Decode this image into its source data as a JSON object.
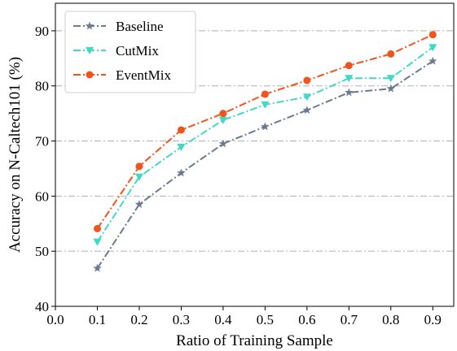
{
  "chart_data": {
    "type": "line",
    "xlabel": "Ratio of Training Sample",
    "ylabel": "Accuracy on N-Caltech101 (%)",
    "xlim": [
      0.0,
      0.95
    ],
    "ylim": [
      40,
      95
    ],
    "xticks": [
      "0.0",
      "0.1",
      "0.2",
      "0.3",
      "0.4",
      "0.5",
      "0.6",
      "0.7",
      "0.8",
      "0.9"
    ],
    "yticks": [
      "40",
      "50",
      "60",
      "70",
      "80",
      "90"
    ],
    "grid": "horizontal dash-dot",
    "legend_position": "top-left",
    "x": [
      0.1,
      0.2,
      0.3,
      0.4,
      0.5,
      0.6,
      0.7,
      0.8,
      0.9
    ],
    "series": [
      {
        "name": "Baseline",
        "color": "#6b7a8f",
        "marker": "star",
        "values": [
          46.9,
          58.5,
          64.2,
          69.5,
          72.6,
          75.6,
          78.8,
          79.5,
          84.5
        ]
      },
      {
        "name": "CutMix",
        "color": "#3fd9c6",
        "marker": "triangle-down",
        "values": [
          51.7,
          63.5,
          68.9,
          73.8,
          76.6,
          78.0,
          81.4,
          81.4,
          87.0
        ]
      },
      {
        "name": "EventMix",
        "color": "#f0531c",
        "marker": "circle",
        "values": [
          54.1,
          65.4,
          72.0,
          75.0,
          78.5,
          81.0,
          83.7,
          85.8,
          89.3
        ]
      }
    ]
  }
}
